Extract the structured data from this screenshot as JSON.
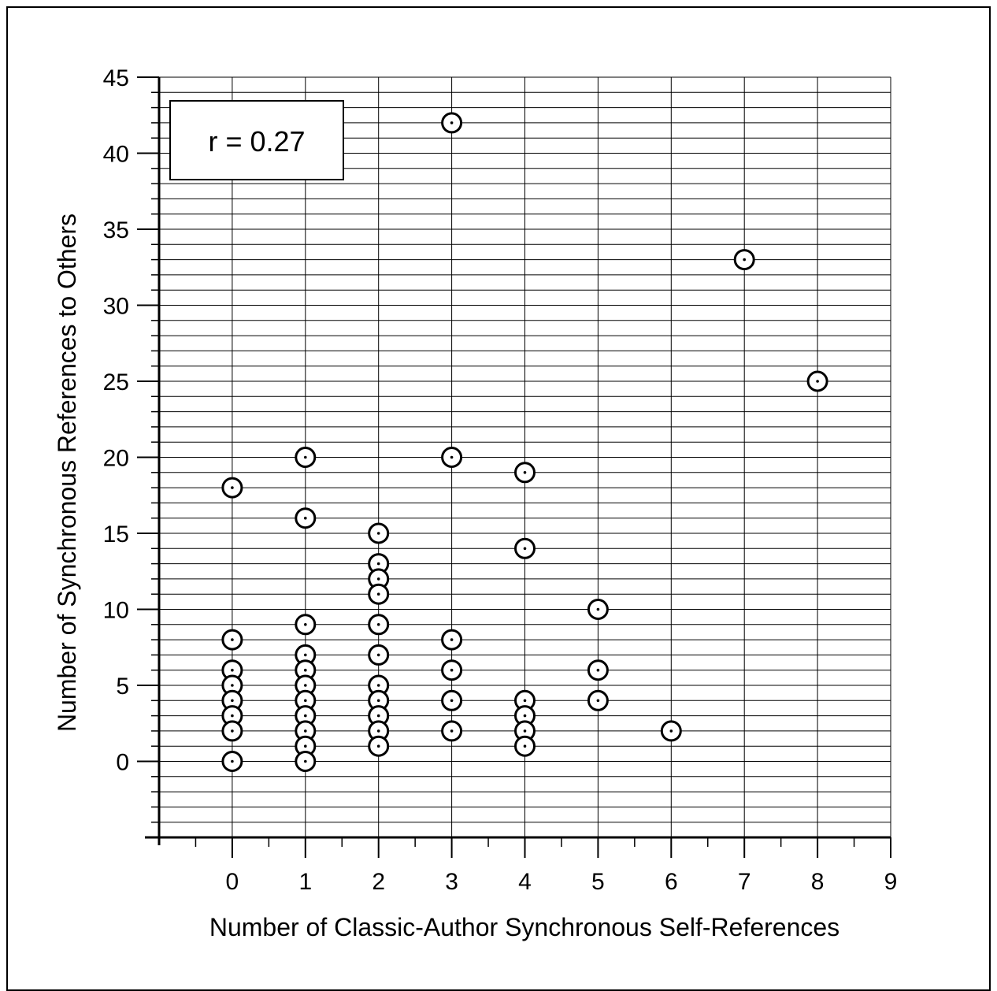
{
  "chart_data": {
    "type": "scatter",
    "xlabel": "Number of Classic-Author Synchronous Self-References",
    "ylabel": "Number of Synchronous References to Others",
    "annotation": "r = 0.27",
    "xlim": [
      -1,
      9
    ],
    "ylim": [
      -5,
      45
    ],
    "x_ticks": [
      0,
      1,
      2,
      3,
      4,
      5,
      6,
      7,
      8,
      9
    ],
    "y_ticks": [
      0,
      5,
      10,
      15,
      20,
      25,
      30,
      35,
      40,
      45
    ],
    "grid": true,
    "points": [
      {
        "x": 0,
        "y": 18
      },
      {
        "x": 0,
        "y": 8
      },
      {
        "x": 0,
        "y": 6
      },
      {
        "x": 0,
        "y": 5
      },
      {
        "x": 0,
        "y": 4
      },
      {
        "x": 0,
        "y": 3
      },
      {
        "x": 0,
        "y": 2
      },
      {
        "x": 0,
        "y": 0
      },
      {
        "x": 1,
        "y": 20
      },
      {
        "x": 1,
        "y": 16
      },
      {
        "x": 1,
        "y": 9
      },
      {
        "x": 1,
        "y": 7
      },
      {
        "x": 1,
        "y": 6
      },
      {
        "x": 1,
        "y": 5
      },
      {
        "x": 1,
        "y": 4
      },
      {
        "x": 1,
        "y": 3
      },
      {
        "x": 1,
        "y": 2
      },
      {
        "x": 1,
        "y": 1
      },
      {
        "x": 1,
        "y": 0
      },
      {
        "x": 2,
        "y": 15
      },
      {
        "x": 2,
        "y": 13
      },
      {
        "x": 2,
        "y": 12
      },
      {
        "x": 2,
        "y": 11
      },
      {
        "x": 2,
        "y": 9
      },
      {
        "x": 2,
        "y": 7
      },
      {
        "x": 2,
        "y": 5
      },
      {
        "x": 2,
        "y": 4
      },
      {
        "x": 2,
        "y": 3
      },
      {
        "x": 2,
        "y": 2
      },
      {
        "x": 2,
        "y": 1
      },
      {
        "x": 3,
        "y": 42
      },
      {
        "x": 3,
        "y": 20
      },
      {
        "x": 3,
        "y": 8
      },
      {
        "x": 3,
        "y": 6
      },
      {
        "x": 3,
        "y": 4
      },
      {
        "x": 3,
        "y": 2
      },
      {
        "x": 4,
        "y": 19
      },
      {
        "x": 4,
        "y": 14
      },
      {
        "x": 4,
        "y": 4
      },
      {
        "x": 4,
        "y": 3
      },
      {
        "x": 4,
        "y": 2
      },
      {
        "x": 4,
        "y": 1
      },
      {
        "x": 5,
        "y": 10
      },
      {
        "x": 5,
        "y": 6
      },
      {
        "x": 5,
        "y": 4
      },
      {
        "x": 6,
        "y": 2
      },
      {
        "x": 7,
        "y": 33
      },
      {
        "x": 8,
        "y": 25
      }
    ]
  }
}
